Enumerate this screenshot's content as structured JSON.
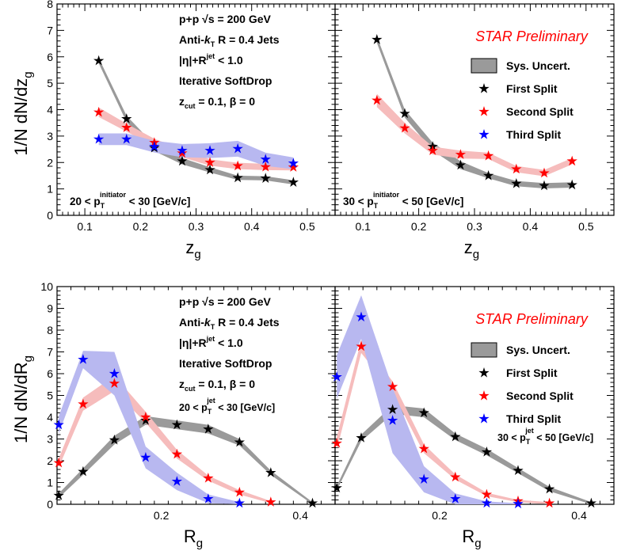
{
  "colors": {
    "first": "#000000",
    "second": "#ff0000",
    "third": "#0000ff",
    "band_first": "#9a9a9a",
    "band_second": "#f6bcbc",
    "band_third": "#b8b8f0",
    "preliminary": "#ff0000"
  },
  "chart_data": [
    {
      "type": "scatter",
      "panel": "zg-low-pt",
      "xlabel": "z",
      "xlabel_sub": "g",
      "ylabel": "1/N dN/dz",
      "ylabel_sub": "g",
      "xlim": [
        0.05,
        0.55
      ],
      "ylim": [
        0,
        8
      ],
      "xticks": [
        0.1,
        0.2,
        0.3,
        0.4,
        0.5
      ],
      "yticks": [
        0,
        1,
        2,
        3,
        4,
        5,
        6,
        7,
        8
      ],
      "annotations": [
        {
          "id": "system",
          "text": "p+p  √s = 200 GeV"
        },
        {
          "id": "algo",
          "pre": "Anti-",
          "k": "k",
          "ksub": "T",
          "post": " R = 0.4 Jets"
        },
        {
          "id": "eta",
          "pre": "|η|+R",
          "sup": "jet",
          "post": " < 1.0"
        },
        {
          "id": "grooming",
          "text": "Iterative SoftDrop"
        },
        {
          "id": "zcut",
          "pre": "z",
          "sub": "cut",
          "post": " = 0.1,  β = 0"
        }
      ],
      "pt_range": {
        "pre": "20 < p",
        "sub": "T",
        "sup": "initiator",
        "post": " < 30 [GeV/c]"
      },
      "series": [
        {
          "name": "First Split",
          "key": "first",
          "x": [
            0.125,
            0.175,
            0.225,
            0.275,
            0.325,
            0.375,
            0.425,
            0.475
          ],
          "y": [
            5.85,
            3.65,
            2.55,
            2.05,
            1.72,
            1.42,
            1.4,
            1.25
          ],
          "sys": [
            0.1,
            0.12,
            0.12,
            0.12,
            0.1,
            0.08,
            0.08,
            0.08
          ]
        },
        {
          "name": "Second Split",
          "key": "second",
          "x": [
            0.125,
            0.175,
            0.225,
            0.275,
            0.325,
            0.375,
            0.425,
            0.475
          ],
          "y": [
            3.9,
            3.32,
            2.75,
            2.35,
            2.0,
            1.87,
            1.83,
            1.82
          ],
          "sys": [
            0.18,
            0.15,
            0.15,
            0.15,
            0.12,
            0.12,
            0.12,
            0.12
          ]
        },
        {
          "name": "Third Split",
          "key": "third",
          "x": [
            0.125,
            0.175,
            0.225,
            0.275,
            0.325,
            0.375,
            0.425,
            0.475
          ],
          "y": [
            2.88,
            2.88,
            2.6,
            2.45,
            2.45,
            2.52,
            2.12,
            1.97
          ],
          "sys": [
            0.22,
            0.22,
            0.22,
            0.25,
            0.28,
            0.3,
            0.25,
            0.22
          ]
        }
      ]
    },
    {
      "type": "scatter",
      "panel": "zg-high-pt",
      "xlabel": "z",
      "xlabel_sub": "g",
      "xlim": [
        0.05,
        0.55
      ],
      "ylim": [
        0,
        8
      ],
      "xticks": [
        0.1,
        0.2,
        0.3,
        0.4,
        0.5
      ],
      "preliminary": "STAR Preliminary",
      "pt_range": {
        "pre": "30 < p",
        "sub": "T",
        "sup": "initiator",
        "post": " < 50 [GeV/c]"
      },
      "legend": [
        "Sys. Uncert.",
        "First Split",
        "Second Split",
        "Third Split"
      ],
      "series": [
        {
          "name": "First Split",
          "key": "first",
          "x": [
            0.125,
            0.175,
            0.225,
            0.275,
            0.325,
            0.375,
            0.425,
            0.475
          ],
          "y": [
            6.65,
            3.85,
            2.6,
            1.9,
            1.5,
            1.2,
            1.12,
            1.15
          ],
          "sys": [
            0.12,
            0.15,
            0.15,
            0.15,
            0.1,
            0.1,
            0.1,
            0.1
          ]
        },
        {
          "name": "Second Split",
          "key": "second",
          "x": [
            0.125,
            0.175,
            0.225,
            0.275,
            0.325,
            0.375,
            0.425,
            0.475
          ],
          "y": [
            4.35,
            3.3,
            2.45,
            2.3,
            2.25,
            1.75,
            1.6,
            2.05
          ],
          "sys": [
            0.25,
            0.2,
            0.15,
            0.15,
            0.12,
            0.12,
            0.12,
            0.12
          ]
        }
      ]
    },
    {
      "type": "scatter",
      "panel": "rg-low-pt",
      "xlabel": "R",
      "xlabel_sub": "g",
      "ylabel": "1/N dN/dR",
      "ylabel_sub": "g",
      "xlim": [
        0.05,
        0.45
      ],
      "ylim": [
        0,
        10
      ],
      "xticks": [
        0.2,
        0.4
      ],
      "yticks": [
        0,
        1,
        2,
        3,
        4,
        5,
        6,
        7,
        8,
        9,
        10
      ],
      "annotations": [
        {
          "id": "system",
          "text": "p+p  √s = 200 GeV"
        },
        {
          "id": "algo",
          "pre": "Anti-",
          "k": "k",
          "ksub": "T",
          "post": " R = 0.4 Jets"
        },
        {
          "id": "eta",
          "pre": "|η|+R",
          "sup": "jet",
          "post": " < 1.0"
        },
        {
          "id": "grooming",
          "text": "Iterative SoftDrop"
        },
        {
          "id": "zcut",
          "pre": "z",
          "sub": "cut",
          "post": " = 0.1,  β = 0"
        }
      ],
      "pt_range": {
        "pre": "20 < p",
        "sub": "T",
        "sup": "jet",
        "post": " < 30 [GeV/c]"
      },
      "series": [
        {
          "name": "First Split",
          "key": "first",
          "x": [
            0.0525,
            0.0875,
            0.1325,
            0.1775,
            0.2225,
            0.2675,
            0.3125,
            0.3575,
            0.4175
          ],
          "y": [
            0.4,
            1.5,
            2.95,
            3.85,
            3.65,
            3.45,
            2.85,
            1.45,
            0.05
          ],
          "sys": [
            0.1,
            0.15,
            0.2,
            0.2,
            0.2,
            0.2,
            0.15,
            0.1,
            0.05
          ]
        },
        {
          "name": "Second Split",
          "key": "second",
          "x": [
            0.0525,
            0.0875,
            0.1325,
            0.1775,
            0.2225,
            0.2675,
            0.3125,
            0.3575
          ],
          "y": [
            1.9,
            4.6,
            5.55,
            4.0,
            2.3,
            1.2,
            0.55,
            0.1
          ],
          "sys": [
            0.2,
            0.3,
            0.35,
            0.25,
            0.2,
            0.12,
            0.1,
            0.05
          ]
        },
        {
          "name": "Third Split",
          "key": "third",
          "x": [
            0.0525,
            0.0875,
            0.1325,
            0.1775,
            0.2225,
            0.2675,
            0.3125
          ],
          "y": [
            3.65,
            6.65,
            6.0,
            2.15,
            1.05,
            0.25,
            0.05
          ],
          "sys": [
            0.4,
            0.4,
            1.0,
            0.5,
            0.4,
            0.2,
            0.05
          ]
        }
      ]
    },
    {
      "type": "scatter",
      "panel": "rg-high-pt",
      "xlabel": "R",
      "xlabel_sub": "g",
      "xlim": [
        0.05,
        0.45
      ],
      "ylim": [
        0,
        10
      ],
      "xticks": [
        0.2,
        0.4
      ],
      "preliminary": "STAR Preliminary",
      "pt_range": {
        "pre": "30 < p",
        "sub": "T",
        "sup": "jet",
        "post": " < 50 [GeV/c]"
      },
      "legend": [
        "Sys. Uncert.",
        "First Split",
        "Second  Split",
        "Third Split"
      ],
      "series": [
        {
          "name": "First Split",
          "key": "first",
          "x": [
            0.0525,
            0.0875,
            0.1325,
            0.1775,
            0.2225,
            0.2675,
            0.3125,
            0.3575,
            0.4175
          ],
          "y": [
            0.75,
            3.05,
            4.35,
            4.2,
            3.1,
            2.4,
            1.55,
            0.7,
            0.05
          ],
          "sys": [
            0.1,
            0.15,
            0.2,
            0.2,
            0.15,
            0.15,
            0.12,
            0.1,
            0.05
          ]
        },
        {
          "name": "Second  Split",
          "key": "second",
          "x": [
            0.0525,
            0.0875,
            0.1325,
            0.1775,
            0.2225,
            0.2675,
            0.3125,
            0.3575
          ],
          "y": [
            2.8,
            7.25,
            5.4,
            2.55,
            1.25,
            0.45,
            0.15,
            0.05
          ],
          "sys": [
            0.3,
            0.3,
            0.25,
            0.2,
            0.12,
            0.08,
            0.05,
            0.05
          ]
        },
        {
          "name": "Third Split",
          "key": "third",
          "x": [
            0.0525,
            0.0875,
            0.1325,
            0.1775,
            0.2225,
            0.2675,
            0.3125
          ],
          "y": [
            5.85,
            8.6,
            3.85,
            1.15,
            0.25,
            0.05,
            0.02
          ],
          "sys": [
            1.0,
            1.0,
            1.5,
            0.6,
            0.25,
            0.08,
            0.03
          ]
        }
      ]
    }
  ]
}
